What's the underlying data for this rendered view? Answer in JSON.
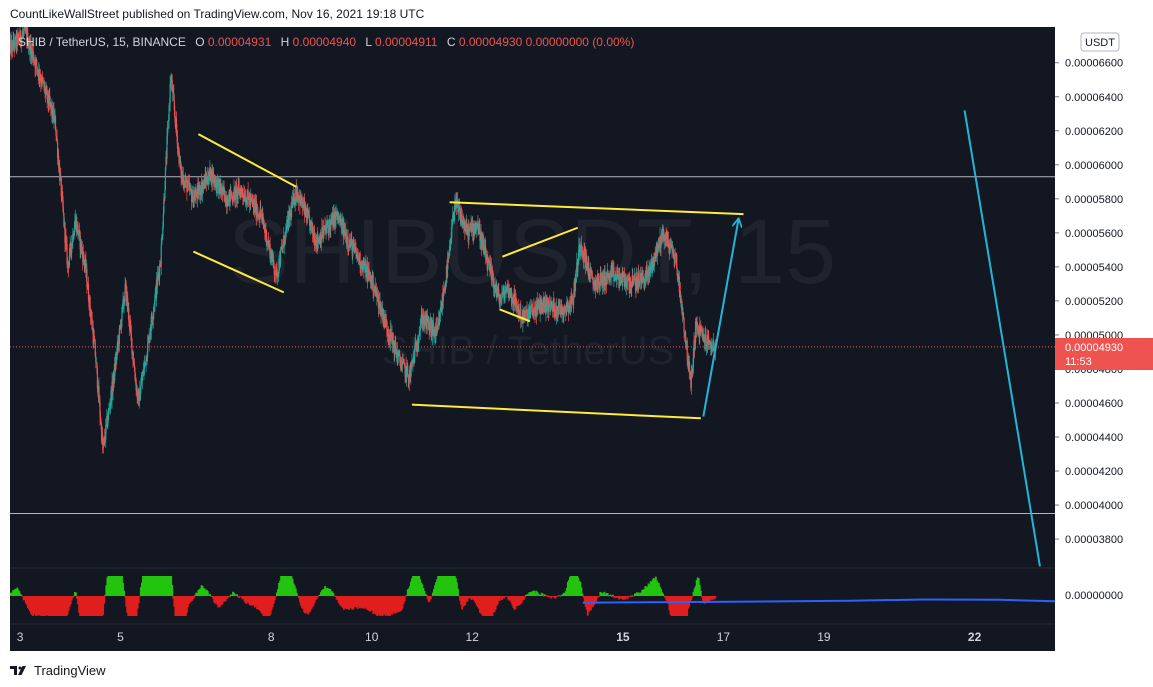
{
  "header": {
    "published_line": "CountLikeWallStreet published on TradingView.com, Nov 16, 2021 19:18 UTC"
  },
  "legend": {
    "symbol": "SHIB / TetherUS, 15, BINANCE",
    "open_label": "O",
    "open_value": "0.00004931",
    "high_label": "H",
    "high_value": "0.00004940",
    "low_label": "L",
    "low_value": "0.00004911",
    "close_label": "C",
    "close_value": "0.00004930 0.00000000 (0.00%)"
  },
  "watermark": {
    "big": "SHIBUSDT, 15",
    "small": "SHIB / TetherUS"
  },
  "price_axis": {
    "currency_button": "USDT",
    "current_price_label": "0.00004930",
    "countdown_label": "11:53",
    "indicator_zero_label": "0.00000000"
  },
  "footer": {
    "brand": "TradingView"
  },
  "colors": {
    "background": "#131722",
    "up": "#26a69a",
    "down": "#ef5350",
    "pattern": "#ffeb3b",
    "projection": "#22b5d8",
    "indicator_up": "#22c40f",
    "indicator_down": "#e01e1e",
    "indicator_line": "#2962ff",
    "price_tag": "#ef5350"
  },
  "chart_data": {
    "type": "line",
    "title": "SHIB / TetherUS, 15, BINANCE",
    "interval": "15",
    "x_tick_labels": [
      "3",
      "5",
      "8",
      "10",
      "12",
      "15",
      "17",
      "19",
      "22"
    ],
    "y_tick_labels": [
      "0.00006600",
      "0.00006400",
      "0.00006200",
      "0.00006000",
      "0.00005800",
      "0.00005600",
      "0.00005400",
      "0.00005200",
      "0.00005000",
      "0.00004800",
      "0.00004600",
      "0.00004400",
      "0.00004200",
      "0.00004000",
      "0.00003800"
    ],
    "ylim": [
      3.63e-05,
      6.81e-05
    ],
    "x_unit": "day of November 2021",
    "xlim": [
      2.8,
      23.6
    ],
    "price_path": [
      [
        2.8,
        6.68e-05
      ],
      [
        3.1,
        6.78e-05
      ],
      [
        3.4,
        6.52e-05
      ],
      [
        3.7,
        6.25e-05
      ],
      [
        3.95,
        5.4e-05
      ],
      [
        4.1,
        5.68e-05
      ],
      [
        4.3,
        5.4e-05
      ],
      [
        4.5,
        4.88e-05
      ],
      [
        4.65,
        4.32e-05
      ],
      [
        4.85,
        4.72e-05
      ],
      [
        5.1,
        5.28e-05
      ],
      [
        5.35,
        4.6e-05
      ],
      [
        5.55,
        4.95e-05
      ],
      [
        5.8,
        5.45e-05
      ],
      [
        6.0,
        6.52e-05
      ],
      [
        6.2,
        5.95e-05
      ],
      [
        6.45,
        5.8e-05
      ],
      [
        6.8,
        5.95e-05
      ],
      [
        7.1,
        5.8e-05
      ],
      [
        7.4,
        5.85e-05
      ],
      [
        7.8,
        5.7e-05
      ],
      [
        8.1,
        5.35e-05
      ],
      [
        8.35,
        5.68e-05
      ],
      [
        8.5,
        5.85e-05
      ],
      [
        8.9,
        5.55e-05
      ],
      [
        9.3,
        5.7e-05
      ],
      [
        9.6,
        5.52e-05
      ],
      [
        10.0,
        5.32e-05
      ],
      [
        10.3,
        5.05e-05
      ],
      [
        10.55,
        4.85e-05
      ],
      [
        10.75,
        4.75e-05
      ],
      [
        11.0,
        5.1e-05
      ],
      [
        11.3,
        5e-05
      ],
      [
        11.55,
        5.48e-05
      ],
      [
        11.65,
        5.78e-05
      ],
      [
        11.9,
        5.6e-05
      ],
      [
        12.1,
        5.65e-05
      ],
      [
        12.3,
        5.42e-05
      ],
      [
        12.55,
        5.2e-05
      ],
      [
        12.7,
        5.28e-05
      ],
      [
        13.0,
        5.1e-05
      ],
      [
        13.4,
        5.18e-05
      ],
      [
        13.8,
        5.15e-05
      ],
      [
        14.0,
        5.2e-05
      ],
      [
        14.15,
        5.55e-05
      ],
      [
        14.4,
        5.3e-05
      ],
      [
        14.8,
        5.35e-05
      ],
      [
        15.2,
        5.3e-05
      ],
      [
        15.5,
        5.35e-05
      ],
      [
        15.8,
        5.6e-05
      ],
      [
        16.05,
        5.45e-05
      ],
      [
        16.2,
        5.1e-05
      ],
      [
        16.35,
        4.7e-05
      ],
      [
        16.45,
        5.05e-05
      ],
      [
        16.7,
        4.95e-05
      ],
      [
        16.85,
        4.93e-05
      ]
    ],
    "horizontal_lines": [
      5.93e-05,
      3.95e-05
    ],
    "current_price": 4.93e-05,
    "drawings": {
      "pattern_lines": [
        [
          [
            6.55,
            6.18e-05
          ],
          [
            8.5,
            5.87e-05
          ]
        ],
        [
          [
            6.45,
            5.49e-05
          ],
          [
            8.25,
            5.25e-05
          ]
        ],
        [
          [
            11.55,
            5.78e-05
          ],
          [
            17.4,
            5.71e-05
          ]
        ],
        [
          [
            10.8,
            4.59e-05
          ],
          [
            16.55,
            4.51e-05
          ]
        ],
        [
          [
            12.6,
            5.46e-05
          ],
          [
            14.1,
            5.63e-05
          ]
        ],
        [
          [
            12.55,
            5.15e-05
          ],
          [
            13.15,
            5.08e-05
          ]
        ]
      ],
      "projection_arrow": [
        [
          16.6,
          4.52e-05
        ],
        [
          17.3,
          5.68e-05
        ]
      ],
      "projection_line": [
        [
          21.8,
          6.32e-05
        ],
        [
          23.3,
          3.64e-05
        ]
      ]
    },
    "indicator": {
      "zero_value": 0,
      "line_path": [
        [
          14.2,
          -0.2
        ],
        [
          15.5,
          -0.3
        ],
        [
          17.5,
          -0.4
        ],
        [
          19.5,
          -0.55
        ],
        [
          21.0,
          -0.75
        ],
        [
          22.5,
          -0.7
        ],
        [
          23.6,
          -0.45
        ]
      ]
    }
  }
}
